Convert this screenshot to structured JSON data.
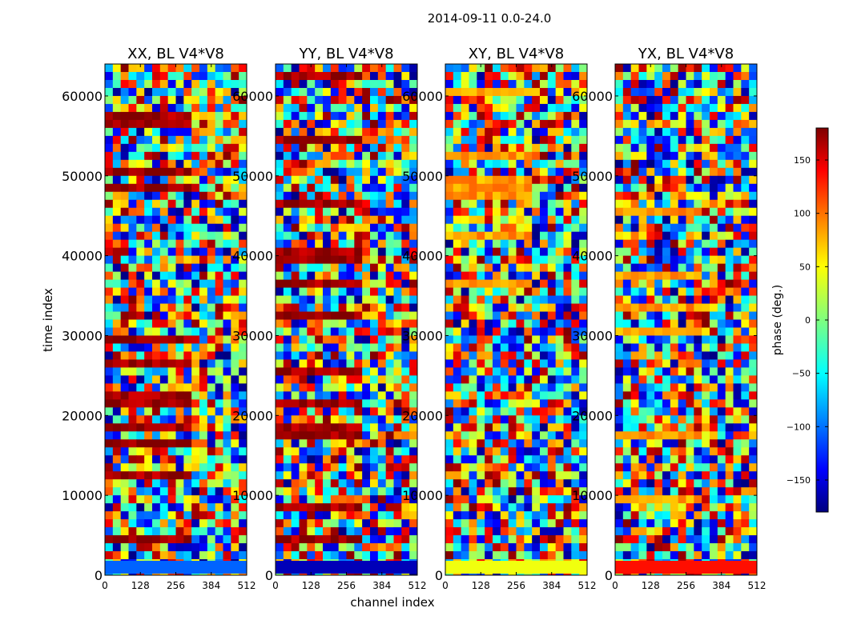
{
  "chart_data": {
    "type": "heatmap",
    "title": "2014-09-11 0.0-24.0",
    "xlabel": "channel index",
    "ylabel": "time index",
    "xlim": [
      0,
      512
    ],
    "ylim": [
      0,
      64000
    ],
    "xticks": [
      0,
      128,
      256,
      384,
      512
    ],
    "yticks": [
      0,
      10000,
      20000,
      30000,
      40000,
      50000,
      60000
    ],
    "panels": [
      {
        "title": "XX, BL V4*V8"
      },
      {
        "title": "YY, BL V4*V8"
      },
      {
        "title": "XY, BL V4*V8"
      },
      {
        "title": "YX, BL V4*V8"
      }
    ],
    "colorbar": {
      "label": "phase (deg.)",
      "range": [
        -180,
        180
      ],
      "ticks": [
        -150,
        -100,
        -50,
        0,
        50,
        100,
        150
      ],
      "tick_labels": [
        "−150",
        "−100",
        "−50",
        "0",
        "50",
        "100",
        "150"
      ],
      "colormap": [
        "#00007f",
        "#0000ff",
        "#007fff",
        "#00ffff",
        "#7fff7f",
        "#ffff00",
        "#ff7f00",
        "#ff0000",
        "#7f0000"
      ]
    },
    "note": "phase noise pattern; individual cell values not legible"
  }
}
